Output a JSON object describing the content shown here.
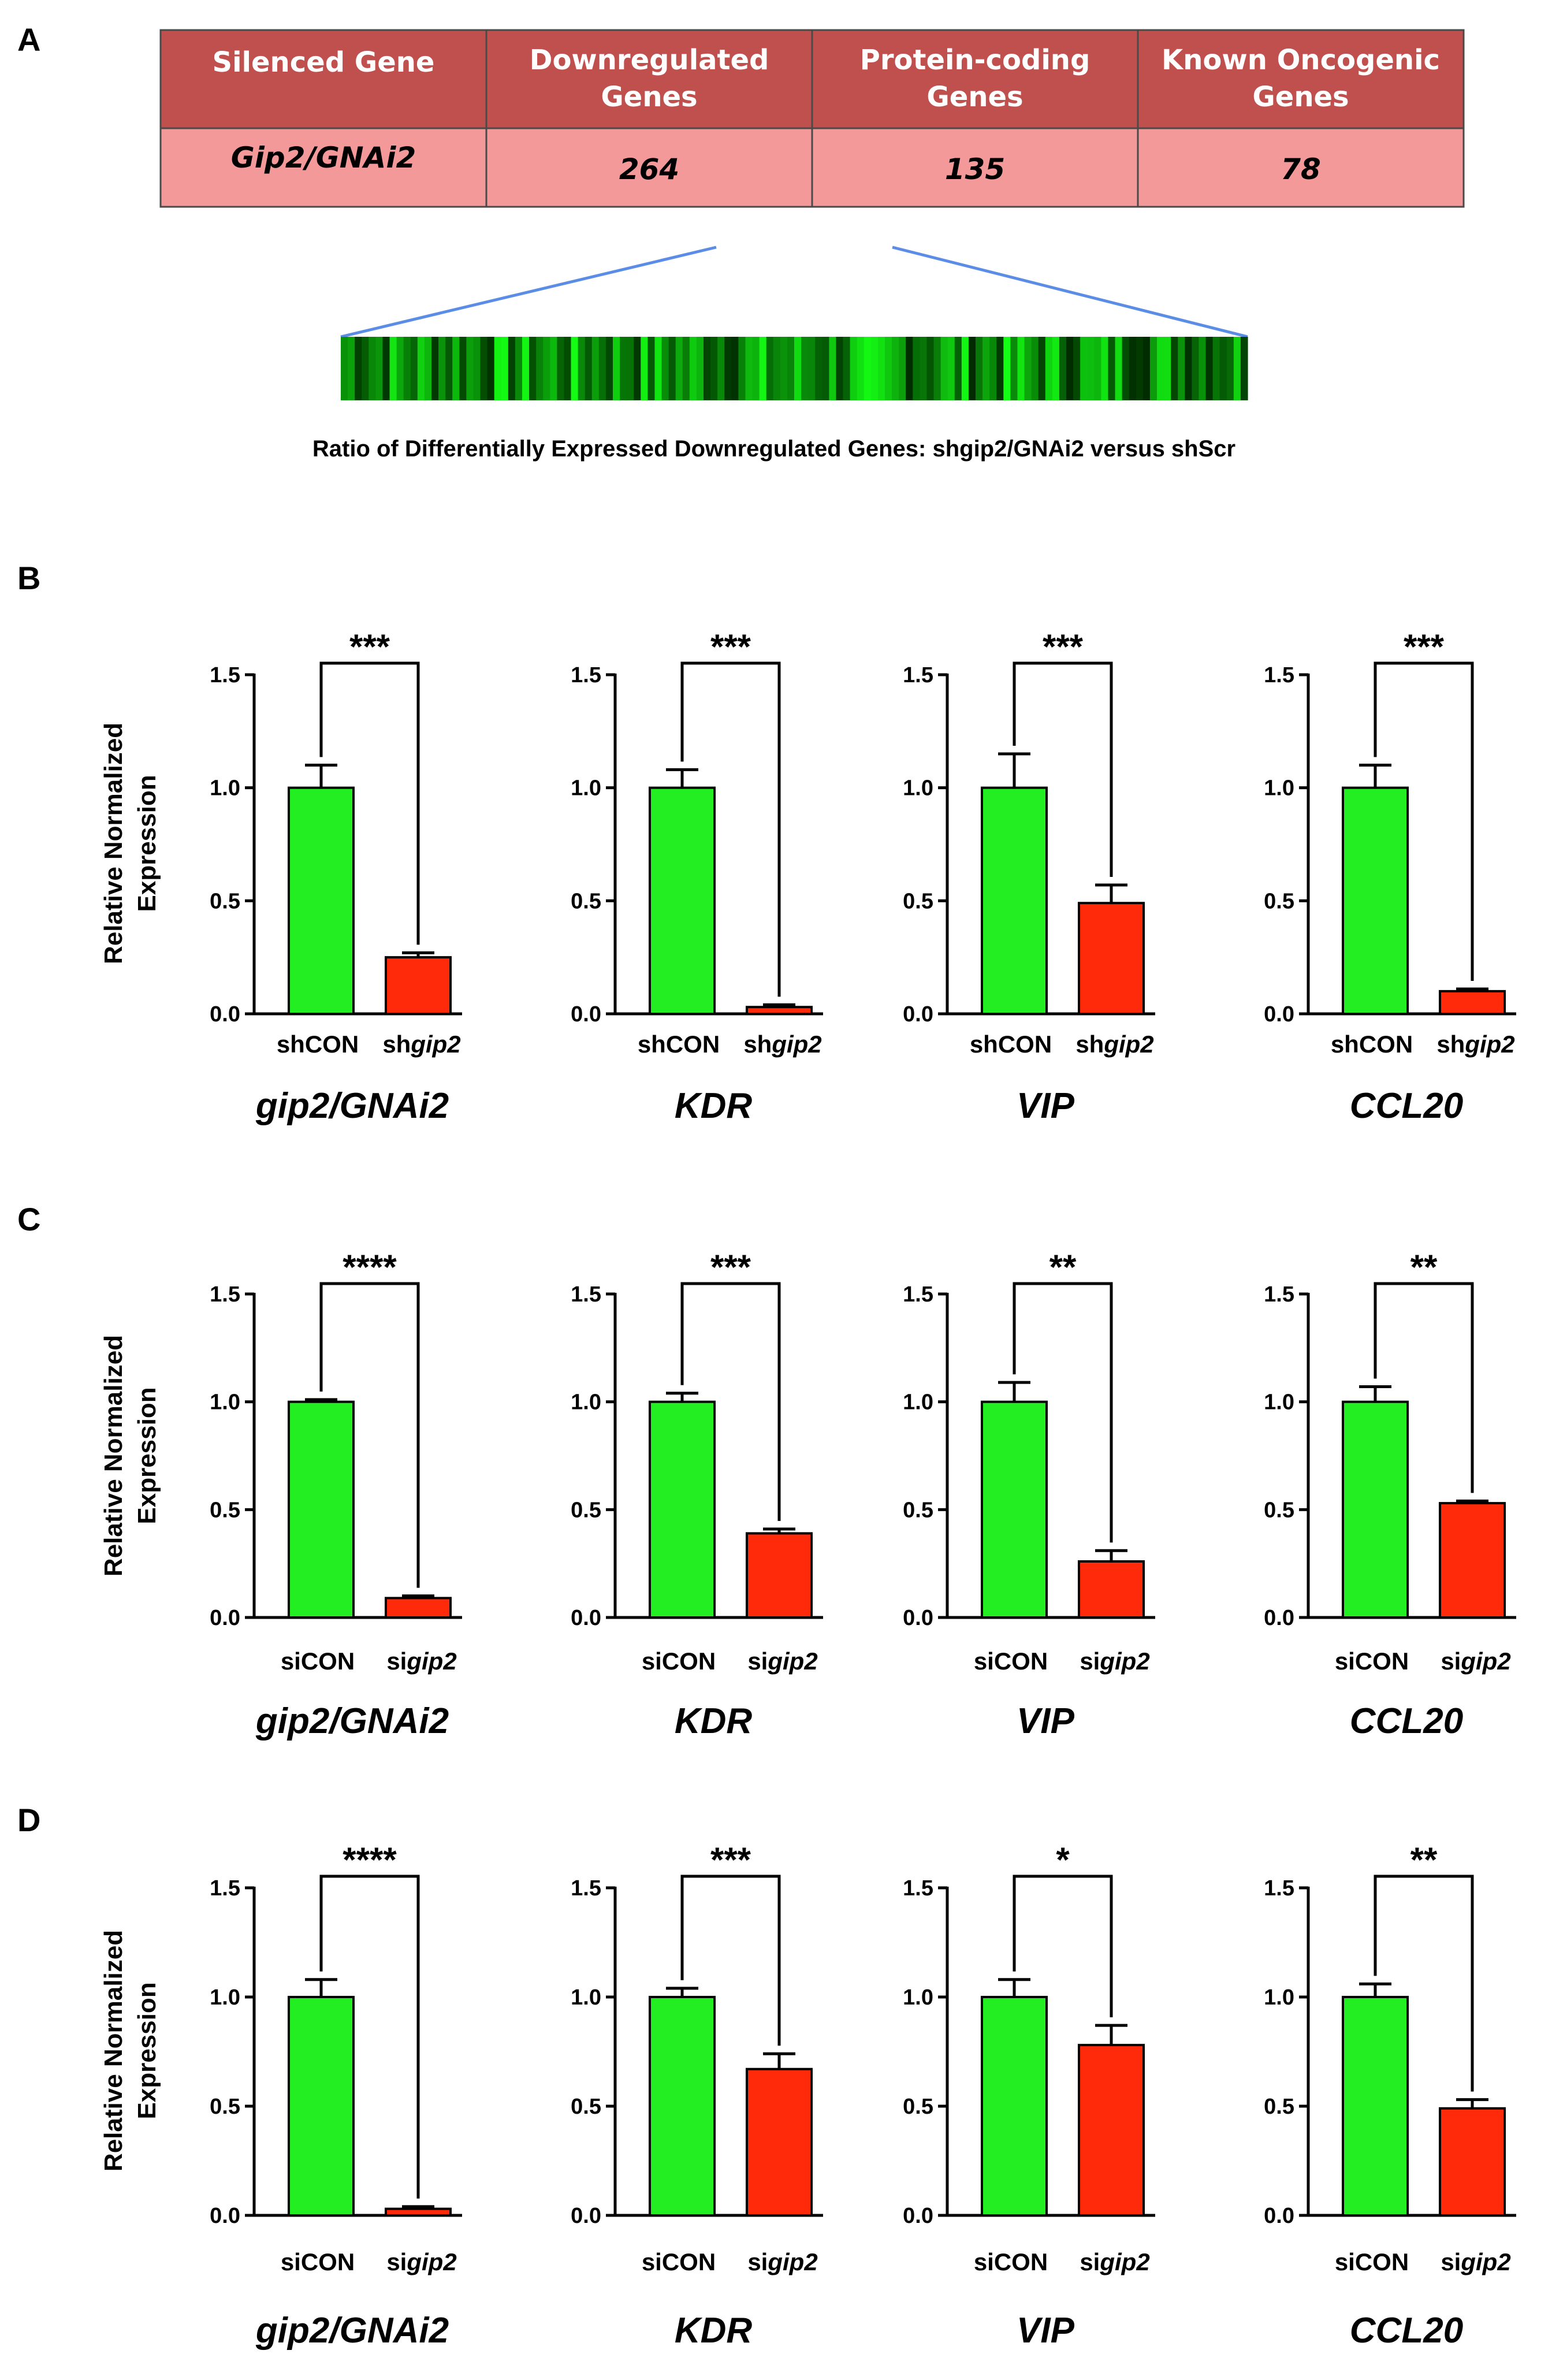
{
  "panels": {
    "A": "A",
    "B": "B",
    "C": "C",
    "D": "D"
  },
  "table": {
    "headers": [
      "Silenced Gene",
      "Downregulated Genes",
      "Protein-coding Genes",
      "Known Oncogenic Genes"
    ],
    "header_lines": [
      [
        "Silenced Gene"
      ],
      [
        "Downregulated",
        "Genes"
      ],
      [
        "Protein-coding",
        "Genes"
      ],
      [
        "Known Oncogenic",
        "Genes"
      ]
    ],
    "row": [
      "Gip2/GNAi2",
      "264",
      "135",
      "78"
    ]
  },
  "heatmap": {
    "caption": "Ratio of Differentially Expressed Downregulated Genes: shgip2/GNAi2 versus shScr"
  },
  "colors": {
    "header_fill": "#c0504d",
    "row_fill": "#f4999a",
    "control_bar": "#22ee22",
    "knockdown_bar": "#ff2a0a",
    "zoom_line": "#5b8de6"
  },
  "y_axis_label": [
    "Relative Normalized",
    "Expression"
  ],
  "chart_data": [
    {
      "type": "bar",
      "panel": "B",
      "title": "gip2/GNAi2",
      "categories": [
        "shCON",
        "shgip2"
      ],
      "values": [
        1.0,
        0.25
      ],
      "errors": [
        0.1,
        0.02
      ],
      "significance": "***",
      "ylabel": "Relative Normalized Expression",
      "ylim": [
        0,
        1.5
      ],
      "yticks": [
        0.0,
        0.5,
        1.0,
        1.5
      ]
    },
    {
      "type": "bar",
      "panel": "B",
      "title": "KDR",
      "categories": [
        "shCON",
        "shgip2"
      ],
      "values": [
        1.0,
        0.03
      ],
      "errors": [
        0.08,
        0.01
      ],
      "significance": "***",
      "ylim": [
        0,
        1.5
      ],
      "yticks": [
        0.0,
        0.5,
        1.0,
        1.5
      ]
    },
    {
      "type": "bar",
      "panel": "B",
      "title": "VIP",
      "categories": [
        "shCON",
        "shgip2"
      ],
      "values": [
        1.0,
        0.49
      ],
      "errors": [
        0.15,
        0.08
      ],
      "significance": "***",
      "ylim": [
        0,
        1.5
      ],
      "yticks": [
        0.0,
        0.5,
        1.0,
        1.5
      ]
    },
    {
      "type": "bar",
      "panel": "B",
      "title": "CCL20",
      "categories": [
        "shCON",
        "shgip2"
      ],
      "values": [
        1.0,
        0.1
      ],
      "errors": [
        0.1,
        0.01
      ],
      "significance": "***",
      "ylim": [
        0,
        1.5
      ],
      "yticks": [
        0.0,
        0.5,
        1.0,
        1.5
      ]
    },
    {
      "type": "bar",
      "panel": "C",
      "title": "gip2/GNAi2",
      "categories": [
        "siCON",
        "sigip2"
      ],
      "values": [
        1.0,
        0.09
      ],
      "errors": [
        0.01,
        0.01
      ],
      "significance": "****",
      "ylabel": "Relative Normalized Expression",
      "ylim": [
        0,
        1.5
      ],
      "yticks": [
        0.0,
        0.5,
        1.0,
        1.5
      ]
    },
    {
      "type": "bar",
      "panel": "C",
      "title": "KDR",
      "categories": [
        "siCON",
        "sigip2"
      ],
      "values": [
        1.0,
        0.39
      ],
      "errors": [
        0.04,
        0.02
      ],
      "significance": "***",
      "ylim": [
        0,
        1.5
      ],
      "yticks": [
        0.0,
        0.5,
        1.0,
        1.5
      ]
    },
    {
      "type": "bar",
      "panel": "C",
      "title": "VIP",
      "categories": [
        "siCON",
        "sigip2"
      ],
      "values": [
        1.0,
        0.26
      ],
      "errors": [
        0.09,
        0.05
      ],
      "significance": "**",
      "ylim": [
        0,
        1.5
      ],
      "yticks": [
        0.0,
        0.5,
        1.0,
        1.5
      ]
    },
    {
      "type": "bar",
      "panel": "C",
      "title": "CCL20",
      "categories": [
        "siCON",
        "sigip2"
      ],
      "values": [
        1.0,
        0.53
      ],
      "errors": [
        0.07,
        0.01
      ],
      "significance": "**",
      "ylim": [
        0,
        1.5
      ],
      "yticks": [
        0.0,
        0.5,
        1.0,
        1.5
      ]
    },
    {
      "type": "bar",
      "panel": "D",
      "title": "gip2/GNAi2",
      "categories": [
        "siCON",
        "sigip2"
      ],
      "values": [
        1.0,
        0.03
      ],
      "errors": [
        0.08,
        0.01
      ],
      "significance": "****",
      "ylabel": "Relative Normalized Expression",
      "ylim": [
        0,
        1.5
      ],
      "yticks": [
        0.0,
        0.5,
        1.0,
        1.5
      ]
    },
    {
      "type": "bar",
      "panel": "D",
      "title": "KDR",
      "categories": [
        "siCON",
        "sigip2"
      ],
      "values": [
        1.0,
        0.67
      ],
      "errors": [
        0.04,
        0.07
      ],
      "significance": "***",
      "ylim": [
        0,
        1.5
      ],
      "yticks": [
        0.0,
        0.5,
        1.0,
        1.5
      ]
    },
    {
      "type": "bar",
      "panel": "D",
      "title": "VIP",
      "categories": [
        "siCON",
        "sigip2"
      ],
      "values": [
        1.0,
        0.78
      ],
      "errors": [
        0.08,
        0.09
      ],
      "significance": "*",
      "ylim": [
        0,
        1.5
      ],
      "yticks": [
        0.0,
        0.5,
        1.0,
        1.5
      ]
    },
    {
      "type": "bar",
      "panel": "D",
      "title": "CCL20",
      "categories": [
        "siCON",
        "sigip2"
      ],
      "values": [
        1.0,
        0.49
      ],
      "errors": [
        0.06,
        0.04
      ],
      "significance": "**",
      "ylim": [
        0,
        1.5
      ],
      "yticks": [
        0.0,
        0.5,
        1.0,
        1.5
      ]
    }
  ]
}
